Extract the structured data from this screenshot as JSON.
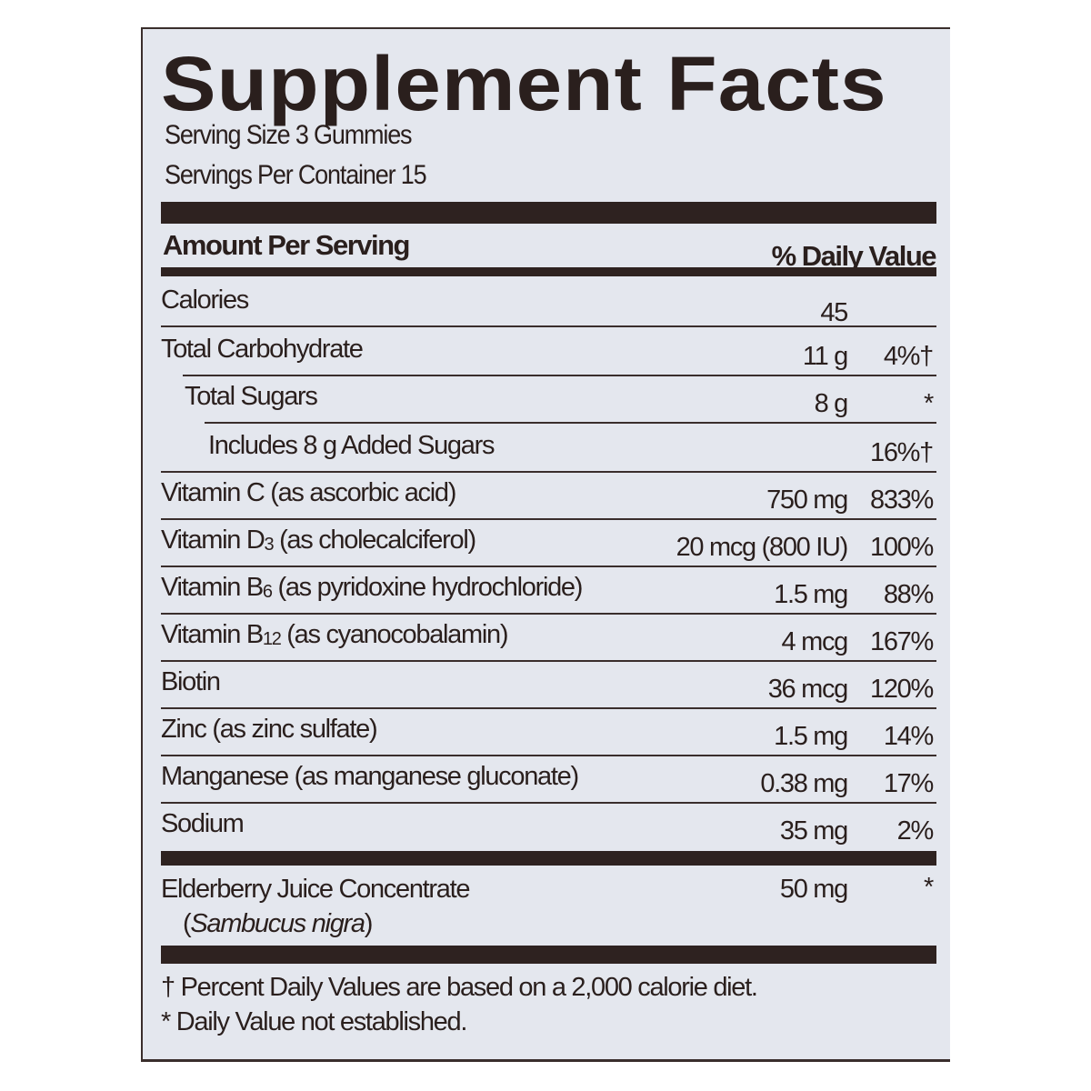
{
  "title": "Supplement Facts",
  "serving_size": "Serving Size 3 Gummies",
  "servings_per_container": "Servings Per Container 15",
  "header": {
    "amount": "Amount Per Serving",
    "dv": "% Daily Value"
  },
  "rows": [
    {
      "name": "Calories",
      "amount": "45",
      "dv": ""
    },
    {
      "name": "Total Carbohydrate",
      "amount": "11 g",
      "dv": "4%†"
    },
    {
      "name": "Total Sugars",
      "amount": "8 g",
      "dv": "*"
    },
    {
      "name": "Includes 8 g Added Sugars",
      "amount": "",
      "dv": "16%†"
    },
    {
      "name": "Vitamin C (as ascorbic acid)",
      "amount": "750 mg",
      "dv": "833%"
    },
    {
      "name_pre": "Vitamin D",
      "name_sub": "3",
      "name_post": " (as cholecalciferol)",
      "amount": "20 mcg (800 IU)",
      "dv": "100%"
    },
    {
      "name_pre": "Vitamin B",
      "name_sub": "6",
      "name_post": " (as pyridoxine hydrochloride)",
      "amount": "1.5 mg",
      "dv": "88%"
    },
    {
      "name_pre": "Vitamin B",
      "name_sub": "12",
      "name_post": " (as cyanocobalamin)",
      "amount": "4 mcg",
      "dv": "167%"
    },
    {
      "name": "Biotin",
      "amount": "36 mcg",
      "dv": "120%"
    },
    {
      "name": "Zinc (as zinc sulfate)",
      "amount": "1.5 mg",
      "dv": "14%"
    },
    {
      "name": "Manganese (as manganese gluconate)",
      "amount": "0.38 mg",
      "dv": "17%"
    },
    {
      "name": "Sodium",
      "amount": "35 mg",
      "dv": "2%"
    }
  ],
  "other": {
    "name": "Elderberry Juice Concentrate",
    "source_open": "(",
    "source": "Sambucus nigra",
    "source_close": ")",
    "amount": "50 mg",
    "dv": "*"
  },
  "footnotes": [
    "† Percent Daily Values are based on a 2,000 calorie diet.",
    "* Daily Value not established."
  ]
}
